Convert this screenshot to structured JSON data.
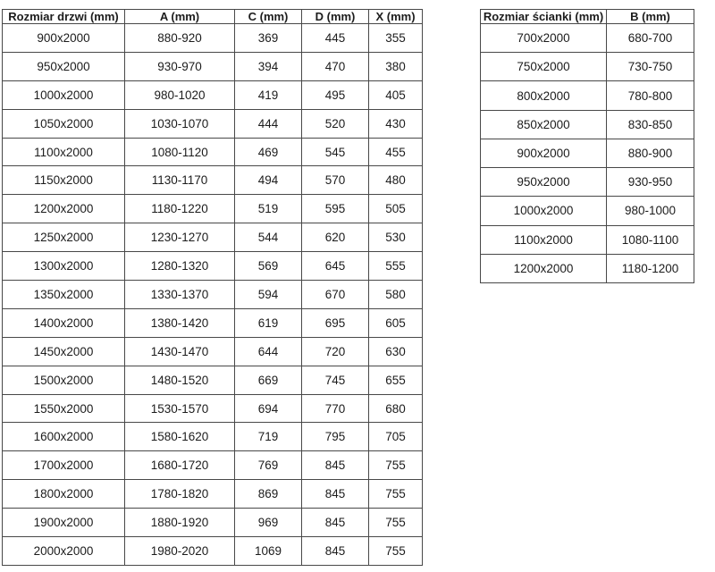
{
  "colors": {
    "background": "#ffffff",
    "border": "#484848",
    "text": "#1c1c1c"
  },
  "door_table": {
    "headers": [
      "Rozmiar drzwi (mm)",
      "A (mm)",
      "C (mm)",
      "D (mm)",
      "X (mm)"
    ],
    "rows": [
      [
        "900x2000",
        "880-920",
        "369",
        "445",
        "355"
      ],
      [
        "950x2000",
        "930-970",
        "394",
        "470",
        "380"
      ],
      [
        "1000x2000",
        "980-1020",
        "419",
        "495",
        "405"
      ],
      [
        "1050x2000",
        "1030-1070",
        "444",
        "520",
        "430"
      ],
      [
        "1100x2000",
        "1080-1120",
        "469",
        "545",
        "455"
      ],
      [
        "1150x2000",
        "1130-1170",
        "494",
        "570",
        "480"
      ],
      [
        "1200x2000",
        "1180-1220",
        "519",
        "595",
        "505"
      ],
      [
        "1250x2000",
        "1230-1270",
        "544",
        "620",
        "530"
      ],
      [
        "1300x2000",
        "1280-1320",
        "569",
        "645",
        "555"
      ],
      [
        "1350x2000",
        "1330-1370",
        "594",
        "670",
        "580"
      ],
      [
        "1400x2000",
        "1380-1420",
        "619",
        "695",
        "605"
      ],
      [
        "1450x2000",
        "1430-1470",
        "644",
        "720",
        "630"
      ],
      [
        "1500x2000",
        "1480-1520",
        "669",
        "745",
        "655"
      ],
      [
        "1550x2000",
        "1530-1570",
        "694",
        "770",
        "680"
      ],
      [
        "1600x2000",
        "1580-1620",
        "719",
        "795",
        "705"
      ],
      [
        "1700x2000",
        "1680-1720",
        "769",
        "845",
        "755"
      ],
      [
        "1800x2000",
        "1780-1820",
        "869",
        "845",
        "755"
      ],
      [
        "1900x2000",
        "1880-1920",
        "969",
        "845",
        "755"
      ],
      [
        "2000x2000",
        "1980-2020",
        "1069",
        "845",
        "755"
      ]
    ]
  },
  "wall_table": {
    "headers": [
      "Rozmiar ścianki (mm)",
      "B (mm)"
    ],
    "rows": [
      [
        "700x2000",
        "680-700"
      ],
      [
        "750x2000",
        "730-750"
      ],
      [
        "800x2000",
        "780-800"
      ],
      [
        "850x2000",
        "830-850"
      ],
      [
        "900x2000",
        "880-900"
      ],
      [
        "950x2000",
        "930-950"
      ],
      [
        "1000x2000",
        "980-1000"
      ],
      [
        "1100x2000",
        "1080-1100"
      ],
      [
        "1200x2000",
        "1180-1200"
      ]
    ]
  }
}
